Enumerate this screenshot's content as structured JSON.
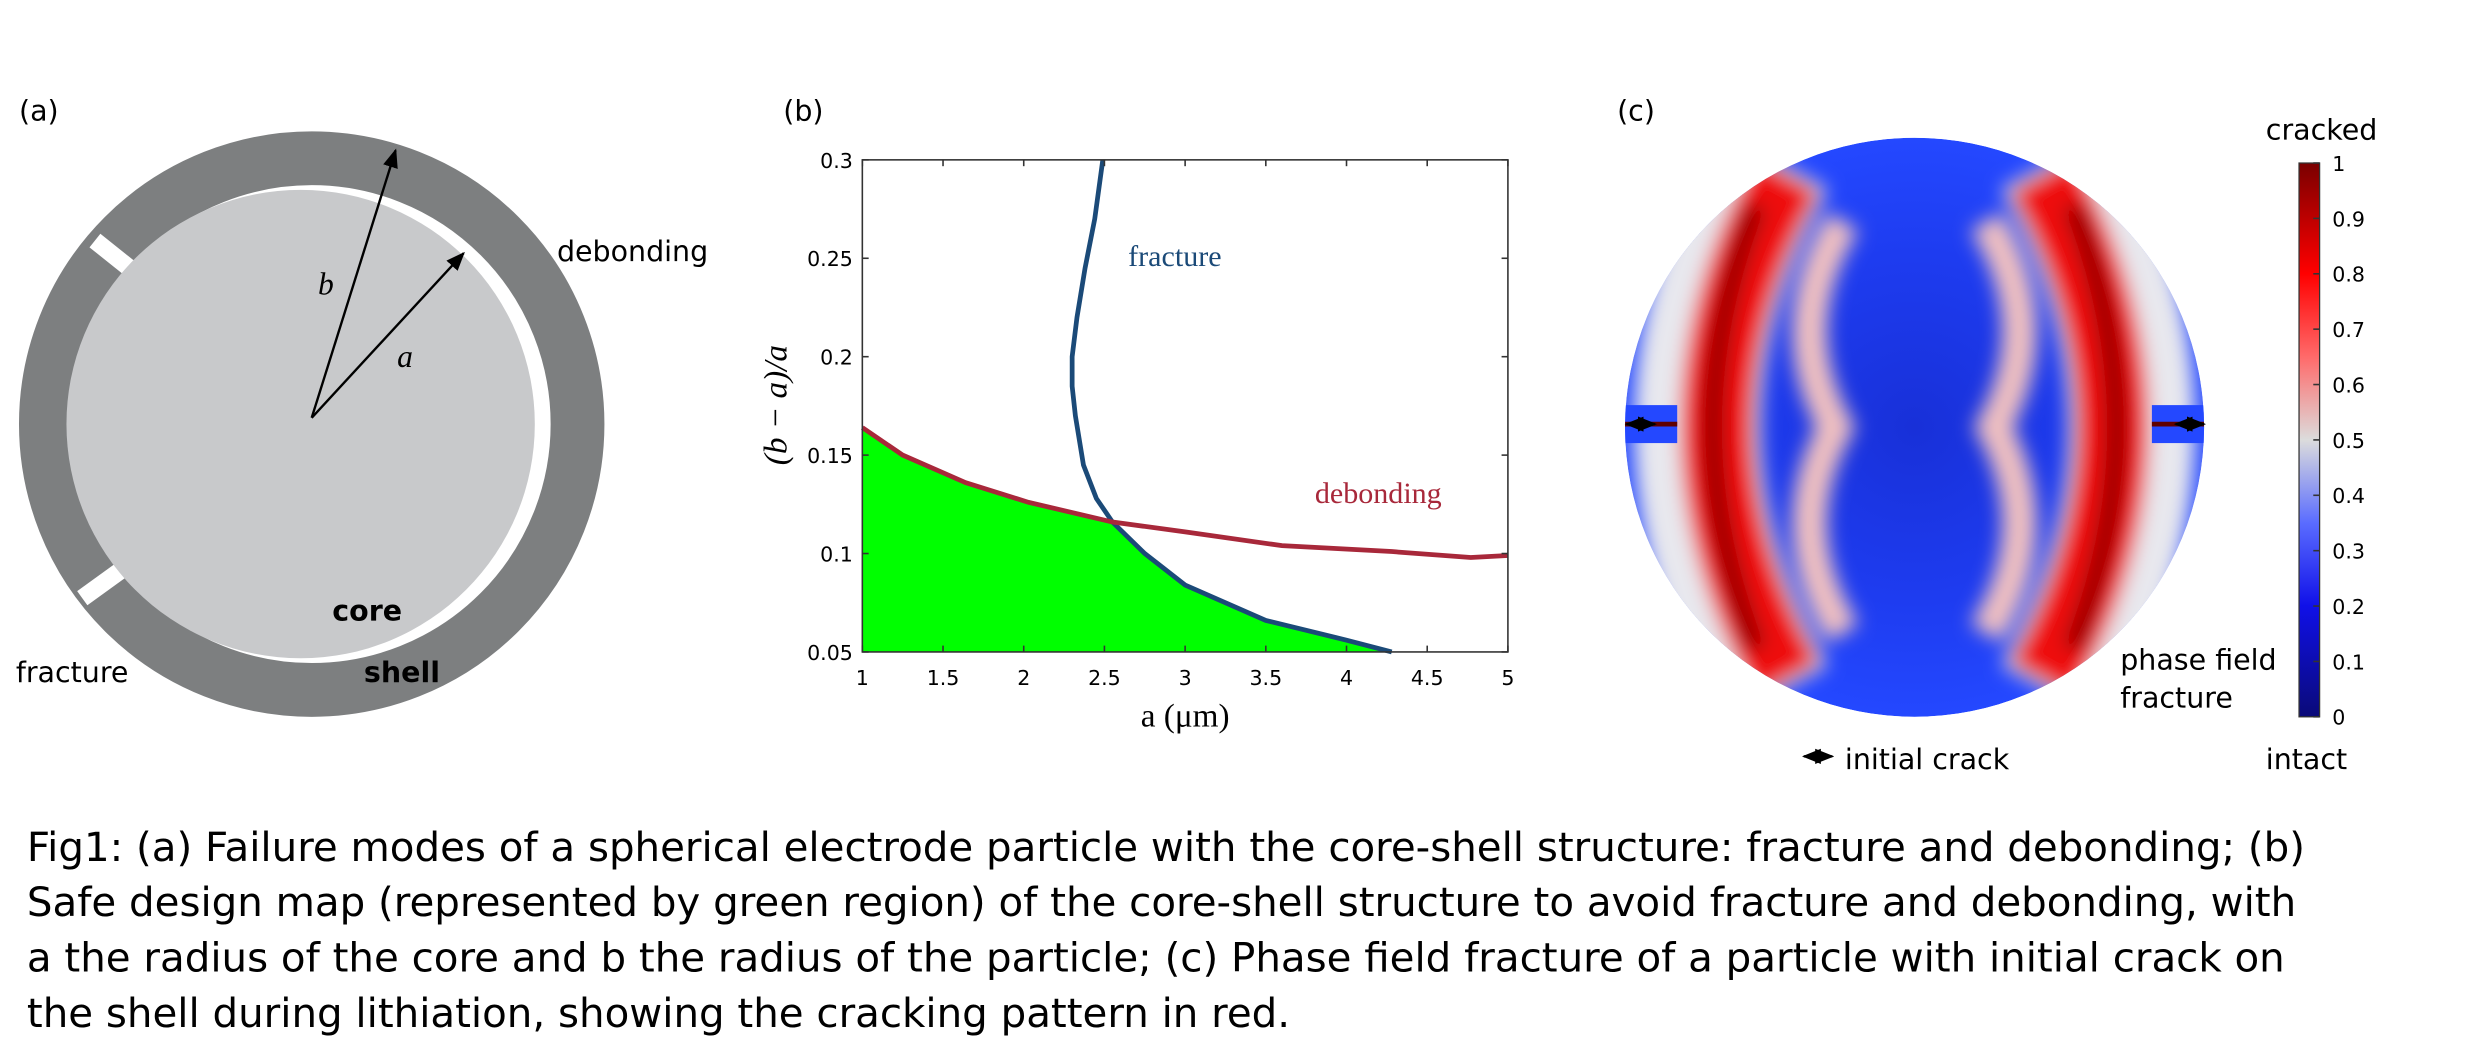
{
  "panel_a": {
    "label": "(a)",
    "radius_b": "b",
    "radius_a": "a",
    "debonding": "debonding",
    "core": "core",
    "shell": "shell",
    "fracture": "fracture"
  },
  "chart_data": {
    "type": "line",
    "label": "(b)",
    "xlabel": "a (μm)",
    "ylabel": "(b − a)/a",
    "xlim": [
      1,
      5
    ],
    "ylim": [
      0.05,
      0.3
    ],
    "xticks": [
      1,
      1.5,
      2,
      2.5,
      3,
      3.5,
      4,
      4.5,
      5
    ],
    "yticks": [
      0.05,
      0.1,
      0.15,
      0.2,
      0.25,
      0.3
    ],
    "series": [
      {
        "name": "fracture",
        "color": "#1b4a78",
        "x": [
          2.49,
          2.44,
          2.38,
          2.33,
          2.3,
          2.3,
          2.32,
          2.37,
          2.45,
          2.55,
          2.75,
          3.0,
          3.5,
          4.0,
          4.28
        ],
        "values": [
          0.3,
          0.27,
          0.245,
          0.22,
          0.2,
          0.185,
          0.17,
          0.145,
          0.128,
          0.116,
          0.1,
          0.084,
          0.066,
          0.056,
          0.05
        ]
      },
      {
        "name": "debonding",
        "color": "#a8283a",
        "x": [
          1,
          1.25,
          1.64,
          2.03,
          2.55,
          3.0,
          3.6,
          4.28,
          4.77,
          5
        ],
        "values": [
          0.164,
          0.15,
          0.136,
          0.126,
          0.116,
          0.111,
          0.104,
          0.101,
          0.098,
          0.099
        ]
      }
    ],
    "safe_region_color": "#00ff00"
  },
  "panel_c": {
    "label": "(c)",
    "colorbar": {
      "title": "cracked",
      "bottom_label": "intact",
      "lim": [
        0,
        1
      ],
      "ticks": [
        0,
        0.1,
        0.2,
        0.3,
        0.4,
        0.5,
        0.6,
        0.7,
        0.8,
        0.9,
        1
      ]
    },
    "annotation_lines": [
      "phase field",
      "fracture"
    ],
    "legend": "initial crack"
  },
  "caption": [
    "Fig1: (a) Failure modes of a spherical electrode particle with the core-shell structure: fracture and debonding; (b)",
    "Safe design map (represented by green region) of the core-shell structure to avoid fracture and debonding, with",
    "a the radius of the core and b the radius of the particle; (c) Phase field fracture of a particle with initial crack on",
    "the shell during lithiation, showing the cracking pattern in red."
  ]
}
